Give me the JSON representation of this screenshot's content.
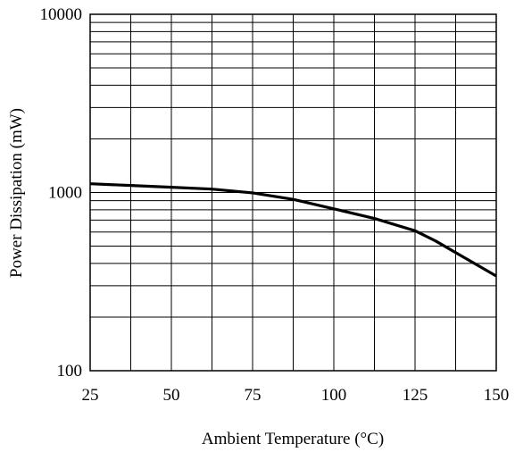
{
  "chart_data": {
    "type": "line",
    "title": "",
    "xlabel": "Ambient Temperature (°C)",
    "ylabel": "Power Dissipation (mW)",
    "x_ticks": [
      "25",
      "50",
      "75",
      "100",
      "125",
      "150"
    ],
    "y_ticks": [
      "100",
      "1000",
      "10000"
    ],
    "xlim": [
      25,
      150
    ],
    "ylim": [
      100,
      10000
    ],
    "y_scale": "log",
    "grid": true,
    "x_grid_step": 12.5,
    "series": [
      {
        "x": [
          25,
          37.5,
          50,
          62.5,
          75,
          87.5,
          100,
          112.5,
          125,
          131.3,
          137.5,
          150
        ],
        "y": [
          1120,
          1095,
          1070,
          1045,
          995,
          915,
          810,
          715,
          610,
          535,
          460,
          340
        ]
      }
    ],
    "line_color": "#000000"
  }
}
